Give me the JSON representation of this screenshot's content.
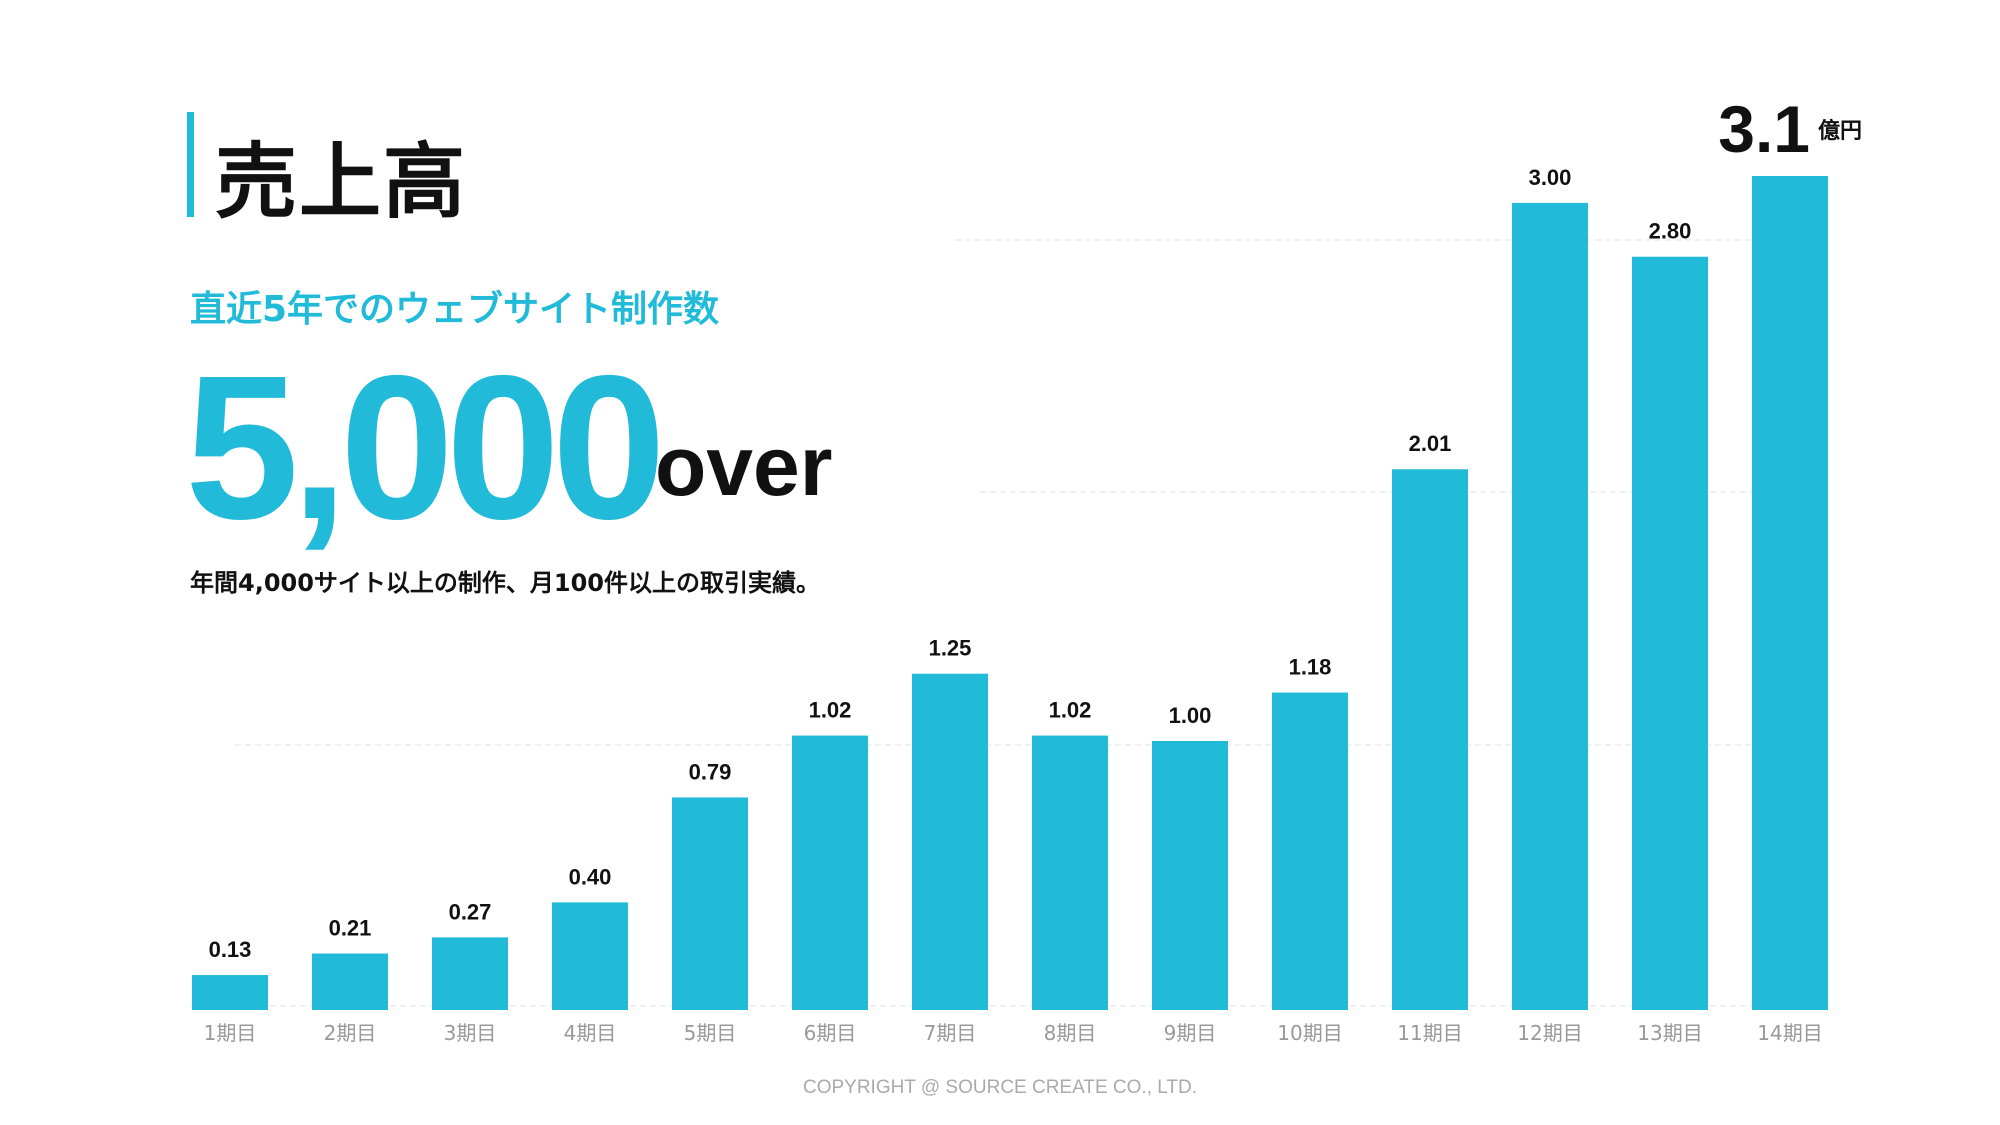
{
  "title": "売上高",
  "subtitle": "直近5年でのウェブサイト制作数",
  "headline_number": "5,000",
  "headline_suffix": "over",
  "description": "年間4,000サイト以上の制作、月100件以上の取引実績。",
  "copyright": "COPYRIGHT @ SOURCE CREATE CO., LTD.",
  "colors": {
    "bar": "#21bbd9",
    "text": "#111111",
    "axis_label": "#999999"
  },
  "chart_data": {
    "type": "bar",
    "categories": [
      "1期目",
      "2期目",
      "3期目",
      "4期目",
      "5期目",
      "6期目",
      "7期目",
      "8期目",
      "9期目",
      "10期目",
      "11期目",
      "12期目",
      "13期目",
      "14期目"
    ],
    "values": [
      0.13,
      0.21,
      0.27,
      0.4,
      0.79,
      1.02,
      1.25,
      1.02,
      1.0,
      1.18,
      2.01,
      3.0,
      2.8,
      3.1
    ],
    "data_labels": [
      "0.13",
      "0.21",
      "0.27",
      "0.40",
      "0.79",
      "1.02",
      "1.25",
      "1.02",
      "1.00",
      "1.18",
      "2.01",
      "3.00",
      "2.80",
      "3.1"
    ],
    "last_label_unit": "億円",
    "ylim": [
      0,
      3.1
    ],
    "grid": true,
    "xlabel": "",
    "ylabel": ""
  }
}
